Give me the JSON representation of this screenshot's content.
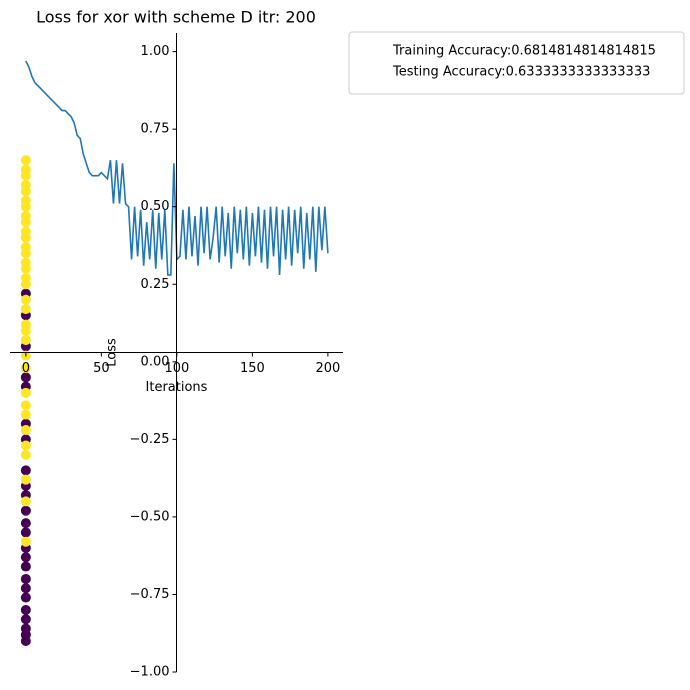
{
  "chart_data": {
    "type": "line",
    "title": "Loss for xor with scheme D itr: 200",
    "xlabel": "Iterations",
    "ylabel": "Loss",
    "xlim": [
      -10.5,
      210
    ],
    "ylim": [
      -1.0,
      1.06
    ],
    "xticks": [
      0,
      50,
      100,
      150,
      200
    ],
    "yticks": [
      {
        "value": -1,
        "label": "−1.00"
      },
      {
        "value": -0.75,
        "label": "−0.75"
      },
      {
        "value": -0.5,
        "label": "−0.50"
      },
      {
        "value": -0.25,
        "label": "−0.25"
      },
      {
        "value": 0,
        "label": "0.00"
      },
      {
        "value": 0.25,
        "label": "0.25"
      },
      {
        "value": 0.5,
        "label": "0.50"
      },
      {
        "value": 0.75,
        "label": "0.75"
      },
      {
        "value": 1,
        "label": "1.00"
      }
    ],
    "legend": [
      "Training Accuracy:0.6814814814814815",
      "Testing Accuracy:0.6333333333333333"
    ],
    "legend_position": "outside-upper-right",
    "line": {
      "color": "#1f77b4",
      "x": [
        0,
        2,
        4,
        6,
        8,
        10,
        12,
        14,
        16,
        18,
        20,
        22,
        24,
        26,
        28,
        30,
        32,
        34,
        36,
        38,
        40,
        42,
        44,
        46,
        48,
        50,
        52,
        54,
        56,
        58,
        60,
        62,
        64,
        66,
        68,
        70,
        72,
        74,
        76,
        78,
        80,
        82,
        84,
        86,
        88,
        90,
        92,
        94,
        96,
        98,
        100,
        102,
        104,
        106,
        108,
        110,
        112,
        114,
        116,
        118,
        120,
        122,
        124,
        126,
        128,
        130,
        132,
        134,
        136,
        138,
        140,
        142,
        144,
        146,
        148,
        150,
        152,
        154,
        156,
        158,
        160,
        162,
        164,
        166,
        168,
        170,
        172,
        174,
        176,
        178,
        180,
        182,
        184,
        186,
        188,
        190,
        192,
        194,
        196,
        198,
        200
      ],
      "y": [
        0.97,
        0.95,
        0.92,
        0.9,
        0.89,
        0.88,
        0.87,
        0.86,
        0.85,
        0.84,
        0.83,
        0.82,
        0.81,
        0.81,
        0.8,
        0.79,
        0.77,
        0.73,
        0.72,
        0.67,
        0.64,
        0.61,
        0.6,
        0.6,
        0.6,
        0.61,
        0.6,
        0.59,
        0.65,
        0.51,
        0.65,
        0.51,
        0.64,
        0.51,
        0.5,
        0.33,
        0.5,
        0.34,
        0.49,
        0.31,
        0.45,
        0.33,
        0.49,
        0.3,
        0.48,
        0.33,
        0.49,
        0.28,
        0.28,
        0.64,
        0.33,
        0.34,
        0.49,
        0.33,
        0.5,
        0.34,
        0.47,
        0.31,
        0.5,
        0.35,
        0.5,
        0.33,
        0.4,
        0.5,
        0.32,
        0.5,
        0.34,
        0.48,
        0.3,
        0.5,
        0.35,
        0.49,
        0.33,
        0.5,
        0.31,
        0.48,
        0.34,
        0.5,
        0.32,
        0.49,
        0.3,
        0.5,
        0.34,
        0.5,
        0.28,
        0.49,
        0.33,
        0.5,
        0.31,
        0.49,
        0.35,
        0.5,
        0.3,
        0.48,
        0.33,
        0.5,
        0.29,
        0.5,
        0.36,
        0.5,
        0.35
      ]
    },
    "scatter": [
      {
        "color": "#440154",
        "x": [
          0,
          0,
          0,
          0,
          0,
          0,
          0,
          0,
          0,
          0,
          0,
          0,
          0,
          0,
          0,
          0,
          0,
          0,
          0,
          0,
          0,
          0,
          0,
          0
        ],
        "y": [
          0.22,
          0.15,
          0.05,
          -0.05,
          -0.08,
          -0.2,
          -0.25,
          -0.35,
          -0.4,
          -0.43,
          -0.48,
          -0.52,
          -0.55,
          -0.6,
          -0.63,
          -0.66,
          -0.7,
          -0.73,
          -0.76,
          -0.8,
          -0.83,
          -0.86,
          -0.88,
          -0.9
        ]
      },
      {
        "color": "#fde725",
        "x": [
          0,
          0,
          0,
          0,
          0,
          0,
          0,
          0,
          0,
          0,
          0,
          0,
          0,
          0,
          0,
          0,
          0,
          0,
          0,
          0,
          0,
          0,
          0,
          0,
          0,
          0,
          0,
          0,
          0,
          0,
          0,
          0,
          0
        ],
        "y": [
          0.65,
          0.62,
          0.6,
          0.57,
          0.55,
          0.52,
          0.5,
          0.47,
          0.45,
          0.42,
          0.4,
          0.37,
          0.35,
          0.32,
          0.3,
          0.27,
          0.25,
          0.2,
          0.17,
          0.12,
          0.1,
          0.07,
          0.02,
          -0.02,
          -0.1,
          -0.14,
          -0.17,
          -0.22,
          -0.27,
          -0.3,
          -0.38,
          -0.45,
          -0.58
        ]
      }
    ]
  }
}
